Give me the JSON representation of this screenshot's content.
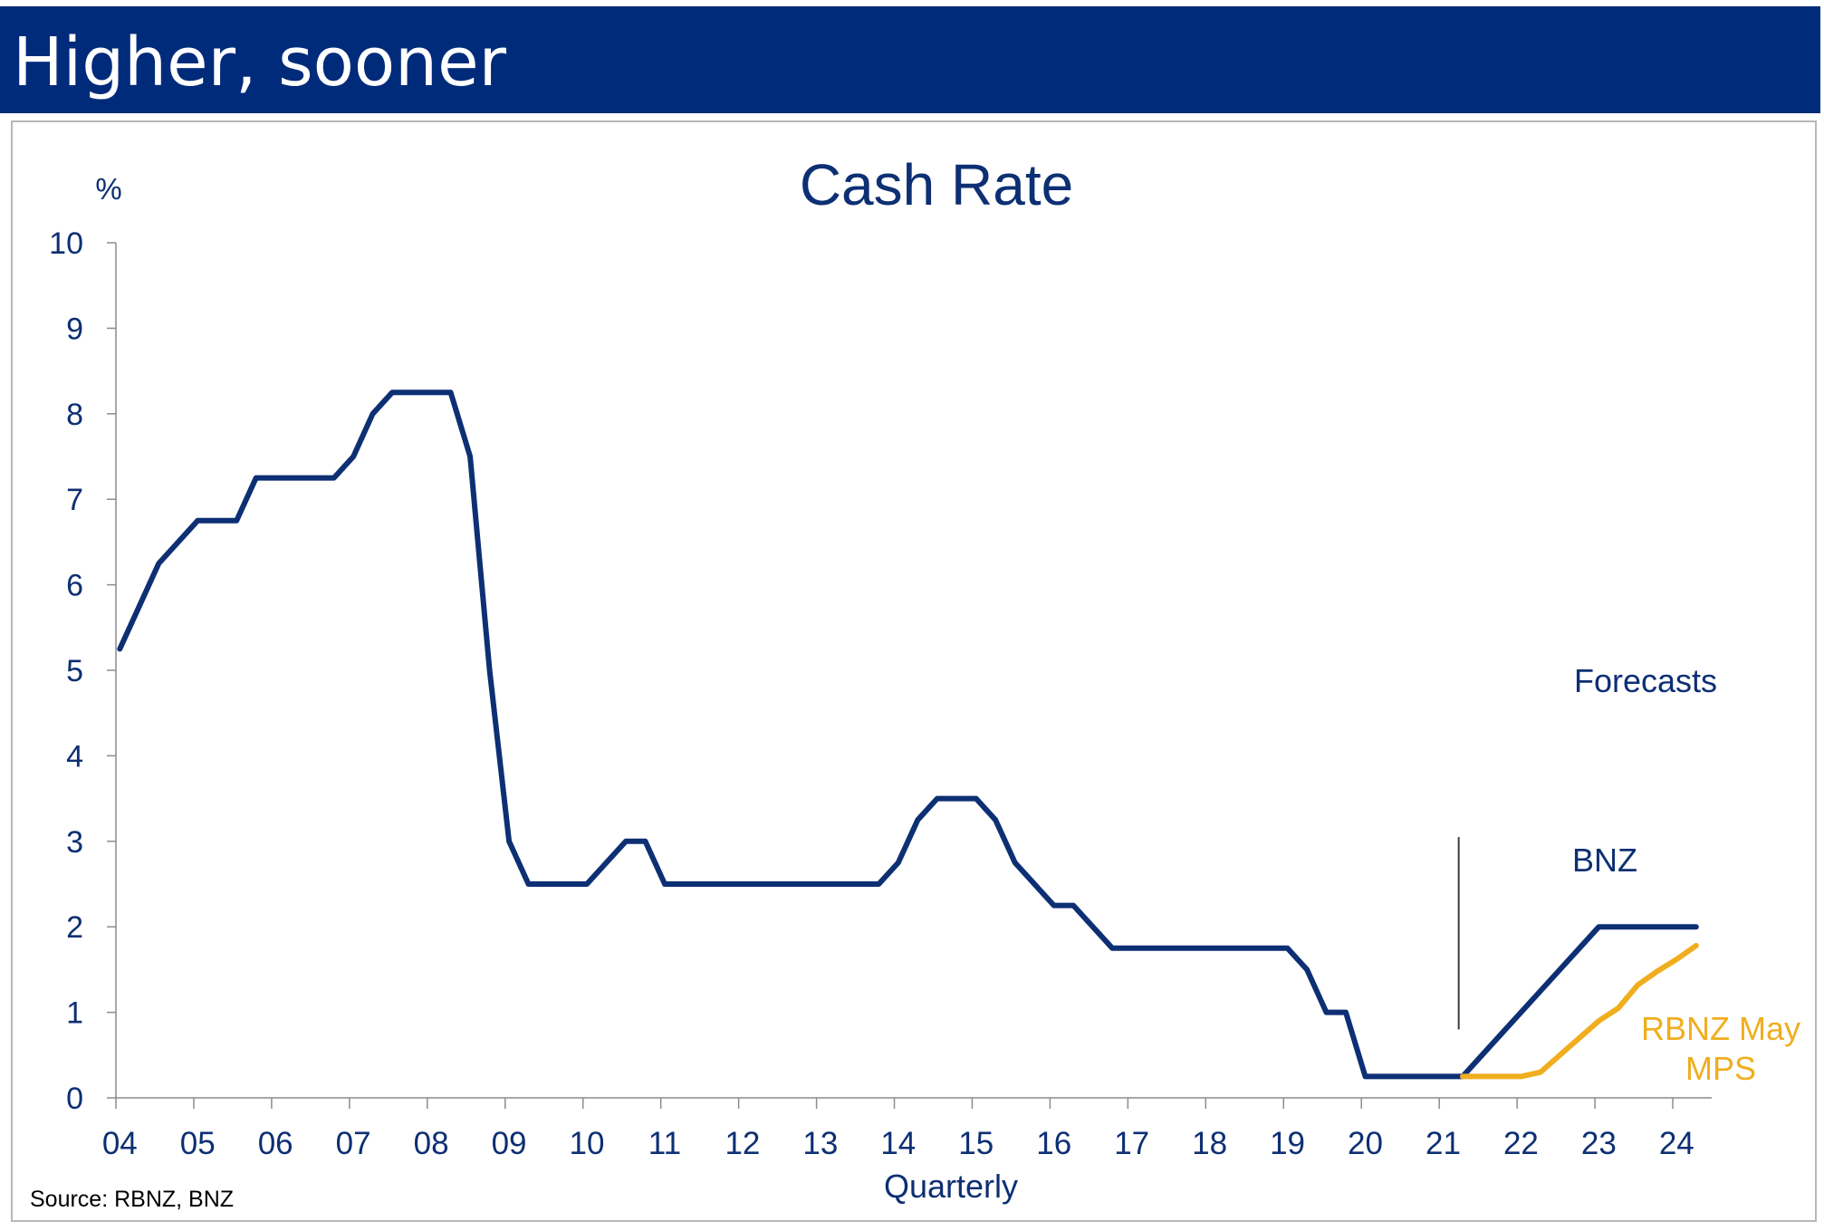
{
  "header": {
    "title": "Higher, sooner"
  },
  "colors": {
    "header_bg": "#002b7a",
    "navy": "#0d2f73",
    "gold": "#f0ae1e",
    "axis": "#8c8c8c",
    "vline": "#3c3c3c"
  },
  "source_note": "Source: RBNZ, BNZ",
  "chart_data": {
    "type": "line",
    "title": "Cash Rate",
    "ylabel": "%",
    "xlabel": "Quarterly",
    "ylim": [
      0,
      10
    ],
    "yticks": [
      "0",
      "1",
      "2",
      "3",
      "4",
      "5",
      "6",
      "7",
      "8",
      "9",
      "10"
    ],
    "xticks": [
      "04",
      "05",
      "06",
      "07",
      "08",
      "09",
      "10",
      "11",
      "12",
      "13",
      "14",
      "15",
      "16",
      "17",
      "18",
      "19",
      "20",
      "21",
      "22",
      "23",
      "24"
    ],
    "x_start": 2004.0,
    "x_step": 0.25,
    "grid": false,
    "forecast_start": 2021.25,
    "annotations": [
      "Forecasts",
      "BNZ",
      "RBNZ May",
      "MPS"
    ],
    "series": [
      {
        "name": "BNZ",
        "color": "#0d2f73",
        "x_offset_quarters": 0,
        "values": [
          5.25,
          5.75,
          6.25,
          6.5,
          6.75,
          6.75,
          6.75,
          7.25,
          7.25,
          7.25,
          7.25,
          7.25,
          7.5,
          8.0,
          8.25,
          8.25,
          8.25,
          8.25,
          7.5,
          5.0,
          3.0,
          2.5,
          2.5,
          2.5,
          2.5,
          2.75,
          3.0,
          3.0,
          2.5,
          2.5,
          2.5,
          2.5,
          2.5,
          2.5,
          2.5,
          2.5,
          2.5,
          2.5,
          2.5,
          2.5,
          2.75,
          3.25,
          3.5,
          3.5,
          3.5,
          3.25,
          2.75,
          2.5,
          2.25,
          2.25,
          2.0,
          1.75,
          1.75,
          1.75,
          1.75,
          1.75,
          1.75,
          1.75,
          1.75,
          1.75,
          1.75,
          1.5,
          1.0,
          1.0,
          0.25,
          0.25,
          0.25,
          0.25,
          0.25,
          0.25,
          0.5,
          0.75,
          1.0,
          1.25,
          1.5,
          1.75,
          2.0,
          2.0,
          2.0,
          2.0,
          2.0,
          2.0
        ]
      },
      {
        "name": "RBNZ May MPS",
        "color": "#f0ae1e",
        "x_offset_quarters": 69,
        "values": [
          0.25,
          0.25,
          0.25,
          0.25,
          0.3,
          0.5,
          0.7,
          0.9,
          1.05,
          1.32,
          1.48,
          1.62,
          1.78
        ]
      }
    ]
  }
}
